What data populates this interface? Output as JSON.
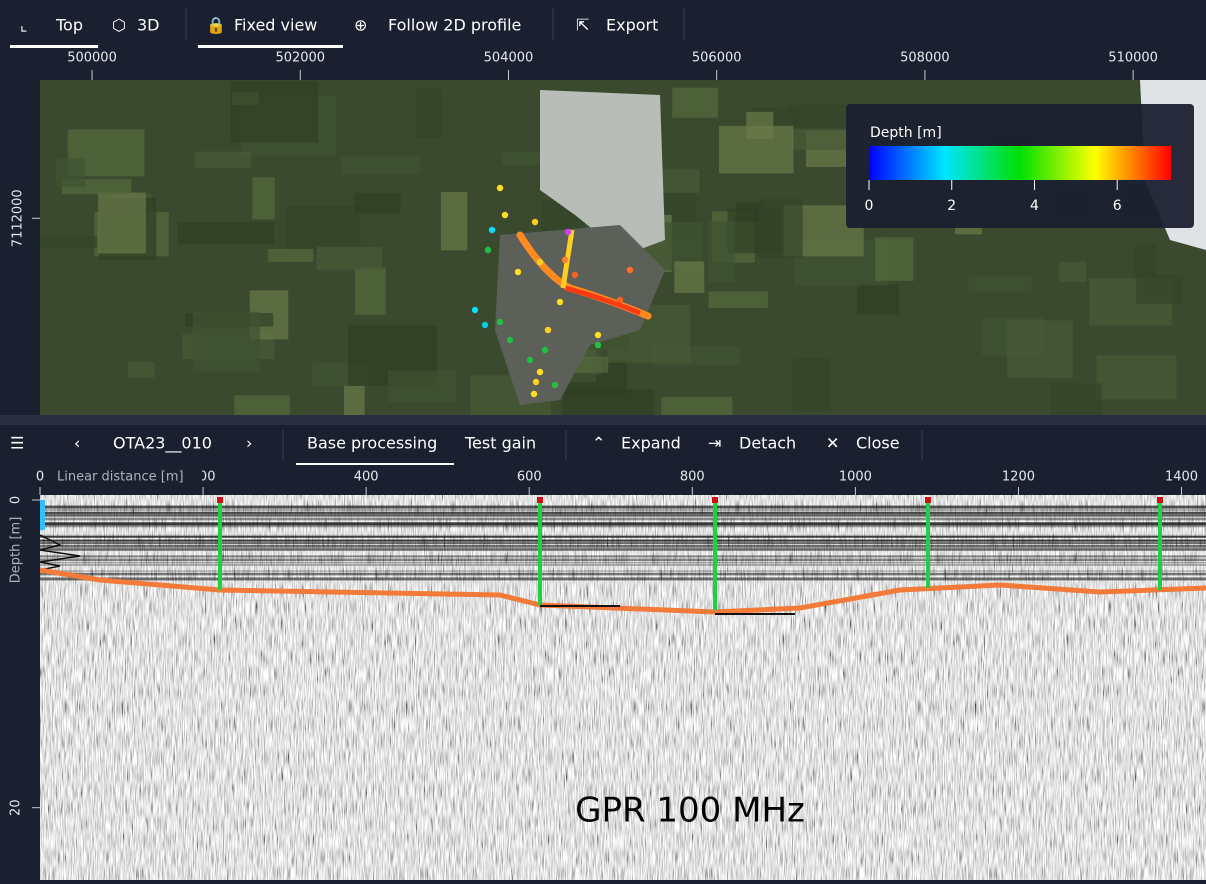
{
  "toolbar": {
    "items": [
      "Top",
      "3D",
      "Fixed view",
      "Follow 2D profile",
      "Export"
    ]
  },
  "map": {
    "xticks": [
      500000,
      502000,
      504000,
      506000,
      508000,
      510000
    ],
    "xlim": [
      499500,
      510700
    ],
    "yticks": [
      7112000
    ],
    "ylim": [
      7110150,
      7113300
    ],
    "legend": {
      "title": "Depth [m]",
      "ticks": [
        0,
        2,
        4,
        6
      ],
      "lim": [
        0,
        7.3
      ]
    }
  },
  "profile_toolbar": {
    "profile": "OTA23__010",
    "tabs": [
      "Base processing",
      "Test gain"
    ],
    "actions": [
      "Expand",
      "Detach",
      "Close"
    ]
  },
  "profile": {
    "xlabel": "Linear distance [m]",
    "xticks": [
      0,
      200,
      400,
      600,
      800,
      1000,
      1200,
      1400
    ],
    "xlim": [
      0,
      1430
    ],
    "ylabel": "Depth [m]",
    "yticks": [
      0,
      20
    ],
    "ylim": [
      0,
      24.7
    ],
    "annotation": "GPR 100 MHz"
  }
}
